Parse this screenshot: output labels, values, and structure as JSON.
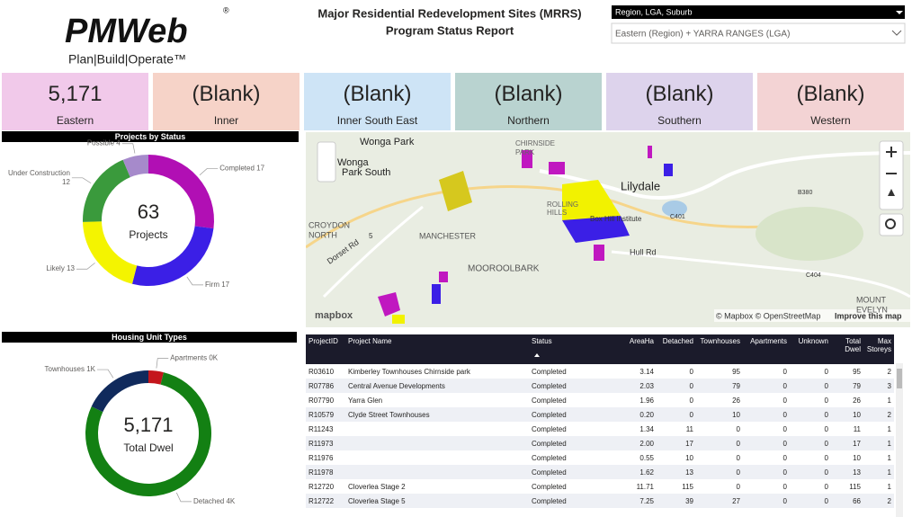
{
  "header": {
    "logo": "PMWeb",
    "registered": "®",
    "tagline": "Plan|Build|Operate™",
    "title": "Major Residential Redevelopment Sites (MRRS)",
    "subtitle": "Program Status Report"
  },
  "filter": {
    "label": "Region, LGA, Suburb",
    "value": "Eastern (Region) + YARRA RANGES (LGA)"
  },
  "cards": [
    {
      "value": "5,171",
      "label": "Eastern",
      "color": "#f1c9ea"
    },
    {
      "value": "(Blank)",
      "label": "Inner",
      "color": "#f6d3c8"
    },
    {
      "value": "(Blank)",
      "label": "Inner South East",
      "color": "#cee4f6"
    },
    {
      "value": "(Blank)",
      "label": "Northern",
      "color": "#b9d3d0"
    },
    {
      "value": "(Blank)",
      "label": "Southern",
      "color": "#ddd3ec"
    },
    {
      "value": "(Blank)",
      "label": "Western",
      "color": "#f3d3d4"
    }
  ],
  "chart_data": [
    {
      "type": "donut",
      "title": "Projects by Status",
      "center_value": 63,
      "center_label": "Projects",
      "categories": [
        "Completed",
        "Firm",
        "Likely",
        "Under Construction",
        "Possible"
      ],
      "values": [
        17,
        17,
        13,
        12,
        4
      ],
      "colors": [
        "#b10fb4",
        "#3b1fe6",
        "#f4f400",
        "#3a9a3c",
        "#a68acb"
      ]
    },
    {
      "type": "donut",
      "title": "Housing Unit Types",
      "center_value": "5,171",
      "center_label": "Total Dwel",
      "categories": [
        "Apartments",
        "Detached",
        "Townhouses"
      ],
      "values": [
        201,
        4040,
        930
      ],
      "value_labels": [
        "0K",
        "4K",
        "1K"
      ],
      "colors": [
        "#c4161c",
        "#138013",
        "#102a5c"
      ]
    }
  ],
  "map": {
    "places": [
      "Wonga Park",
      "Wonga",
      "Park South",
      "CHIRNSIDE",
      "PARK",
      "Lilydale",
      "ROLLING",
      "HILLS",
      "Box Hill Institute",
      "CROYDON",
      "NORTH",
      "MANCHESTER",
      "MOOROOLBARK",
      "Hull Rd",
      "Dorset Rd",
      "5",
      "C401",
      "B380",
      "C404",
      "MOUNT",
      "EVELYN"
    ],
    "logo": "mapbox",
    "attribution": "© Mapbox © OpenStreetMap",
    "improve": "Improve this map"
  },
  "table": {
    "columns": [
      "ProjectID",
      "Project Name",
      "Status",
      "AreaHa",
      "Detached",
      "Townhouses",
      "Apartments",
      "Unknown",
      "Total Dwel",
      "Max Storeys"
    ],
    "rows": [
      [
        "R03610",
        "Kimberley Townhouses Chirnside park",
        "Completed",
        "3.14",
        "0",
        "95",
        "0",
        "0",
        "95",
        "2"
      ],
      [
        "R07786",
        "Central Avenue Developments",
        "Completed",
        "2.03",
        "0",
        "79",
        "0",
        "0",
        "79",
        "3"
      ],
      [
        "R07790",
        "Yarra Glen",
        "Completed",
        "1.96",
        "0",
        "26",
        "0",
        "0",
        "26",
        "1"
      ],
      [
        "R10579",
        "Clyde Street Townhouses",
        "Completed",
        "0.20",
        "0",
        "10",
        "0",
        "0",
        "10",
        "2"
      ],
      [
        "R11243",
        null,
        "Completed",
        "1.34",
        "11",
        "0",
        "0",
        "0",
        "11",
        "1"
      ],
      [
        "R11973",
        null,
        "Completed",
        "2.00",
        "17",
        "0",
        "0",
        "0",
        "17",
        "1"
      ],
      [
        "R11976",
        null,
        "Completed",
        "0.55",
        "10",
        "0",
        "0",
        "0",
        "10",
        "1"
      ],
      [
        "R11978",
        null,
        "Completed",
        "1.62",
        "13",
        "0",
        "0",
        "0",
        "13",
        "1"
      ],
      [
        "R12720",
        "Cloverlea Stage 2",
        "Completed",
        "11.71",
        "115",
        "0",
        "0",
        "0",
        "115",
        "1"
      ],
      [
        "R12722",
        "Cloverlea Stage 5",
        "Completed",
        "7.25",
        "39",
        "27",
        "0",
        "0",
        "66",
        "2"
      ]
    ]
  }
}
